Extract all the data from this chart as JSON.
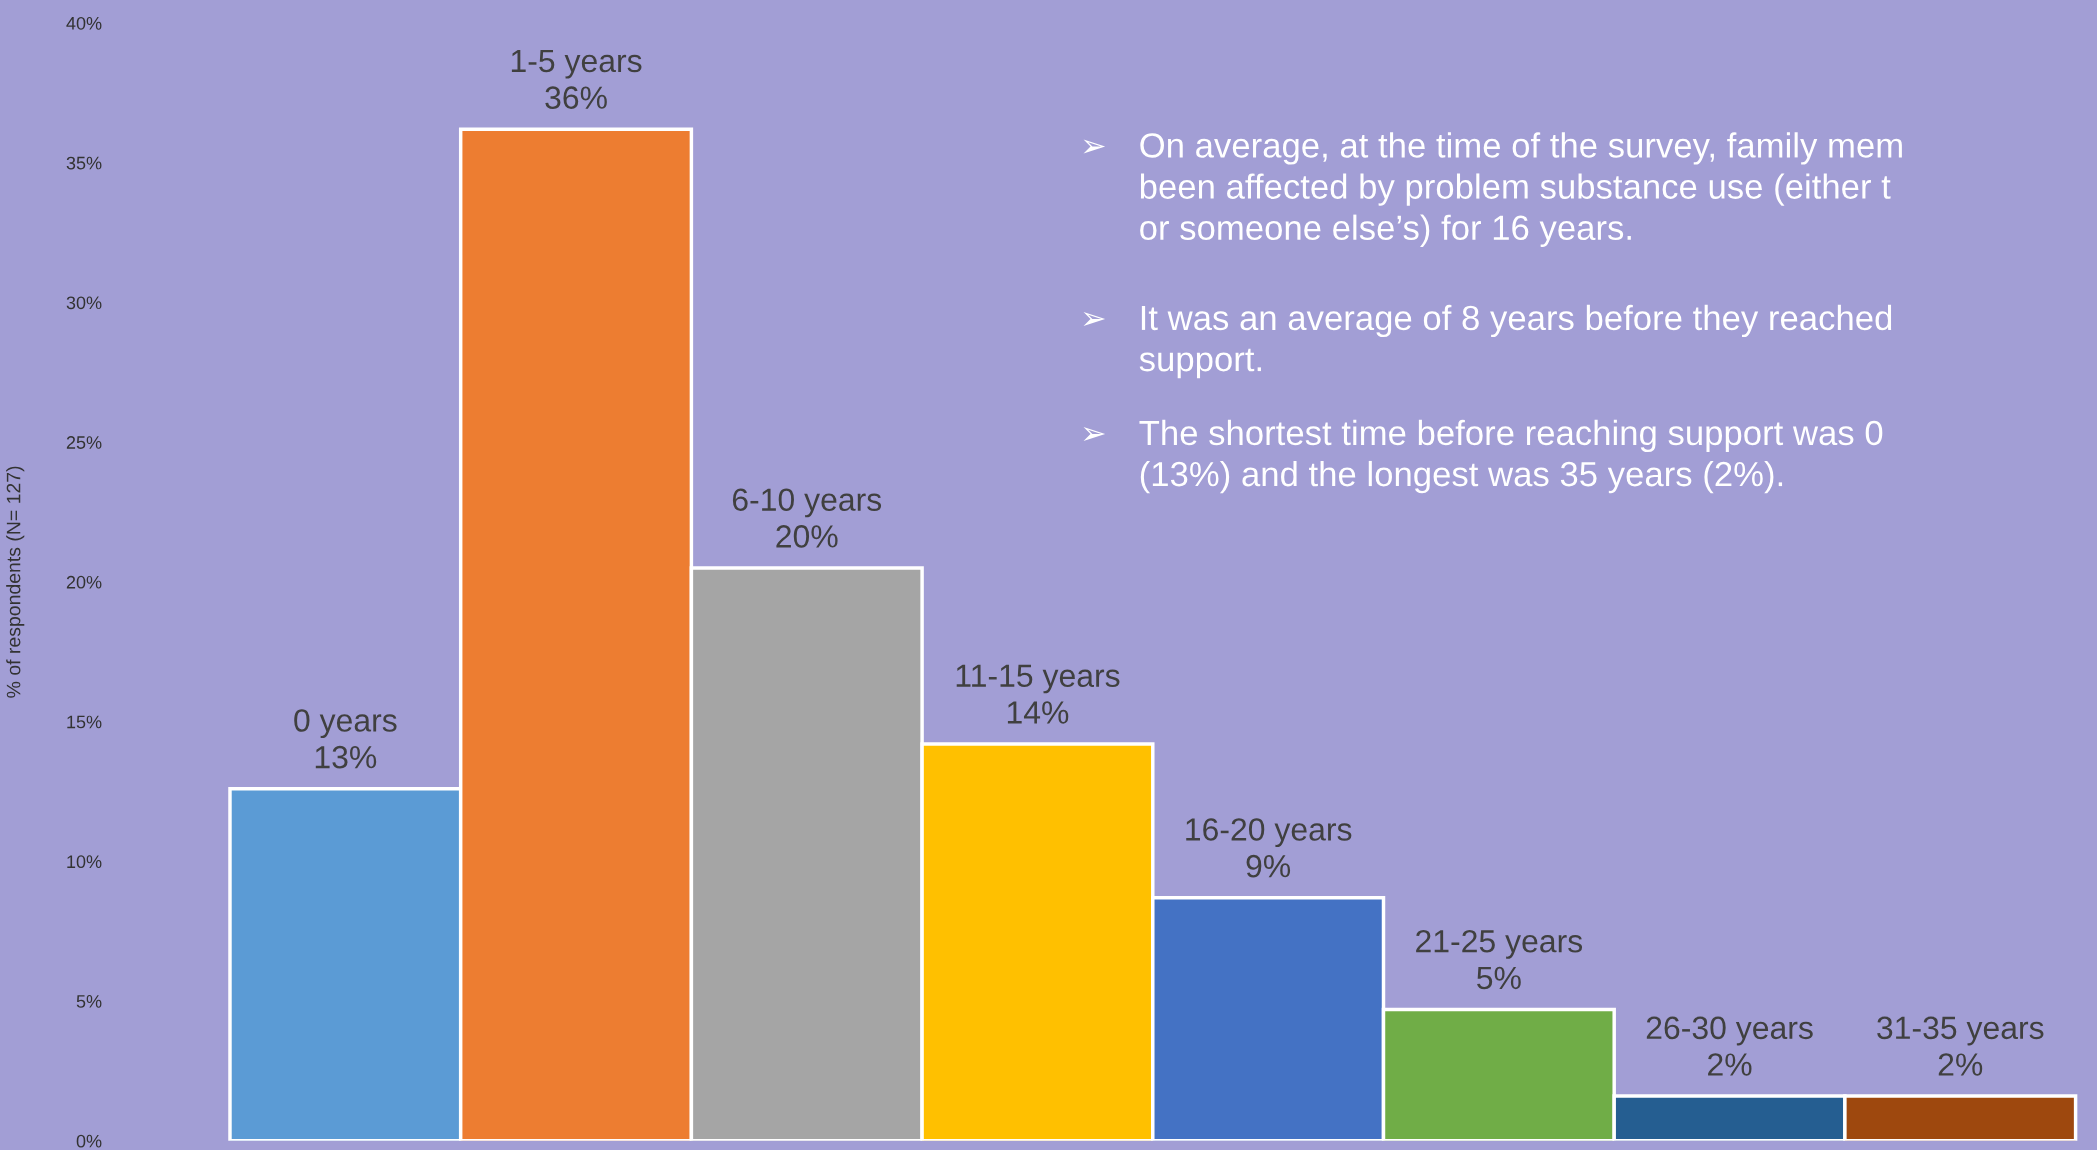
{
  "chart_data": {
    "type": "bar",
    "ylabel": "% of respondents (N= 127)",
    "categories": [
      "0 years",
      "1-5 years",
      "6-10 years",
      "11-15 years",
      "16-20 years",
      "21-25 years",
      "26-30 years",
      "31-35 years"
    ],
    "values": [
      12.6,
      36.2,
      20.5,
      14.2,
      8.7,
      4.7,
      1.6,
      1.6
    ],
    "value_labels": [
      "13%",
      "36%",
      "20%",
      "14%",
      "9%",
      "5%",
      "2%",
      "2%"
    ],
    "colors": [
      "#5b9bd5",
      "#ed7d31",
      "#a5a5a5",
      "#ffc000",
      "#4472c4",
      "#70ad47",
      "#255e91",
      "#9e480e"
    ],
    "ylim": [
      0,
      40
    ],
    "yticks": [
      {
        "value": 0,
        "label": "0%"
      },
      {
        "value": 5,
        "label": "5%"
      },
      {
        "value": 10,
        "label": "10%"
      },
      {
        "value": 15,
        "label": "15%"
      },
      {
        "value": 20,
        "label": "20%"
      },
      {
        "value": 25,
        "label": "25%"
      },
      {
        "value": 30,
        "label": "30%"
      },
      {
        "value": 35,
        "label": "35%"
      },
      {
        "value": 40,
        "label": "40%"
      }
    ],
    "tick_labels": "y",
    "grid": false,
    "legend": false,
    "annotations": [
      "➢ On average, at the time of the survey, family mem\nbeen affected by problem substance use (either t\nor someone else’s) for 16 years.",
      "➢ It was an average of 8 years before they reached\nsupport.",
      "➢ The shortest time before reaching support was 0\n(13%) and the longest was 35 years (2%)."
    ]
  }
}
